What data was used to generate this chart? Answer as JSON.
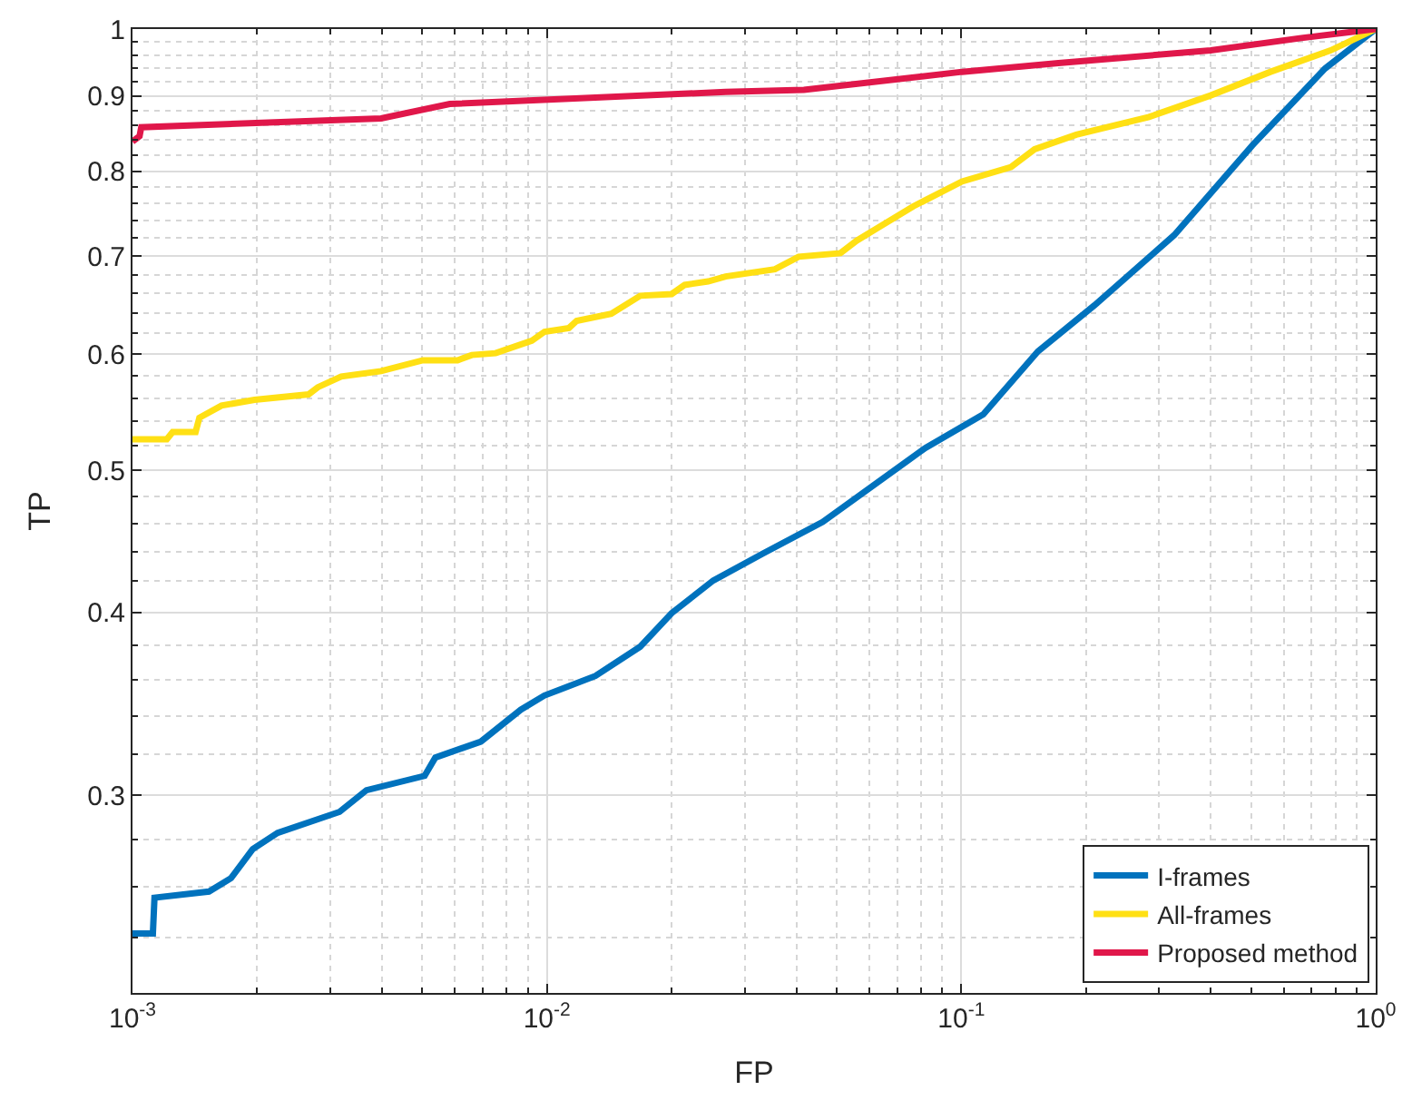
{
  "chart_data": {
    "type": "line",
    "xlabel": "FP",
    "ylabel": "TP",
    "log": "xy",
    "grid": true,
    "legend": "bottom right",
    "line_style": "solid",
    "marker": "none",
    "xlim": [
      0.001,
      1
    ],
    "xticks": [
      {
        "value": 0.001,
        "label": "10$^{-3}$"
      },
      {
        "value": 0.01,
        "label": "10$^{-2}$"
      },
      {
        "value": 0.1,
        "label": "10$^{-1}$"
      },
      {
        "value": 1,
        "label": "10$^{0}$"
      }
    ],
    "ylim": [
      0.22,
      1
    ],
    "yticks": [
      0.3,
      0.4,
      0.5,
      0.6,
      0.7,
      0.8,
      0.9,
      1
    ],
    "series": [
      {
        "name": "I-frames",
        "color": "#0072bd",
        "x": [
          0.001,
          0.00112,
          0.00113,
          0.00153,
          0.00173,
          0.00195,
          0.00224,
          0.00316,
          0.00367,
          0.00507,
          0.00538,
          0.00693,
          0.00865,
          0.00986,
          0.0131,
          0.0168,
          0.02,
          0.0252,
          0.0331,
          0.0463,
          0.082,
          0.113,
          0.153,
          0.2097,
          0.3266,
          0.504,
          0.755,
          1
        ],
        "values": [
          0.2415,
          0.2415,
          0.2555,
          0.258,
          0.2635,
          0.2757,
          0.2829,
          0.2924,
          0.3025,
          0.3094,
          0.3184,
          0.3265,
          0.3433,
          0.351,
          0.362,
          0.379,
          0.3995,
          0.4205,
          0.4385,
          0.461,
          0.518,
          0.546,
          0.6026,
          0.648,
          0.7235,
          0.833,
          0.94,
          1
        ]
      },
      {
        "name": "All-frames",
        "color": "#ffe014",
        "x": [
          0.001,
          0.00121,
          0.00125,
          0.00142,
          0.00145,
          0.00164,
          0.00197,
          0.00266,
          0.0028,
          0.00319,
          0.00398,
          0.00502,
          0.00609,
          0.00659,
          0.00752,
          0.0092,
          0.00987,
          0.0113,
          0.0118,
          0.0143,
          0.0168,
          0.02,
          0.0215,
          0.0245,
          0.027,
          0.0355,
          0.0405,
          0.0511,
          0.0559,
          0.0765,
          0.1004,
          0.1318,
          0.1503,
          0.1895,
          0.2838,
          0.3998,
          0.5575,
          0.7779,
          1
        ],
        "values": [
          0.525,
          0.525,
          0.531,
          0.531,
          0.543,
          0.5535,
          0.5585,
          0.5633,
          0.5697,
          0.5794,
          0.5843,
          0.5943,
          0.5943,
          0.5993,
          0.601,
          0.6129,
          0.6216,
          0.6252,
          0.6323,
          0.6394,
          0.6577,
          0.6595,
          0.669,
          0.6727,
          0.678,
          0.6857,
          0.6993,
          0.7033,
          0.7172,
          0.7568,
          0.787,
          0.805,
          0.828,
          0.847,
          0.871,
          0.901,
          0.935,
          0.967,
          1
        ]
      },
      {
        "name": "Proposed method",
        "color": "#e0174a",
        "x": [
          0.001,
          0.00104,
          0.00105,
          0.00398,
          0.00583,
          0.027,
          0.0417,
          0.1004,
          0.1715,
          0.3998,
          0.662,
          1
        ],
        "values": [
          0.838,
          0.845,
          0.857,
          0.869,
          0.889,
          0.906,
          0.909,
          0.935,
          0.948,
          0.967,
          0.986,
          1
        ]
      }
    ]
  }
}
